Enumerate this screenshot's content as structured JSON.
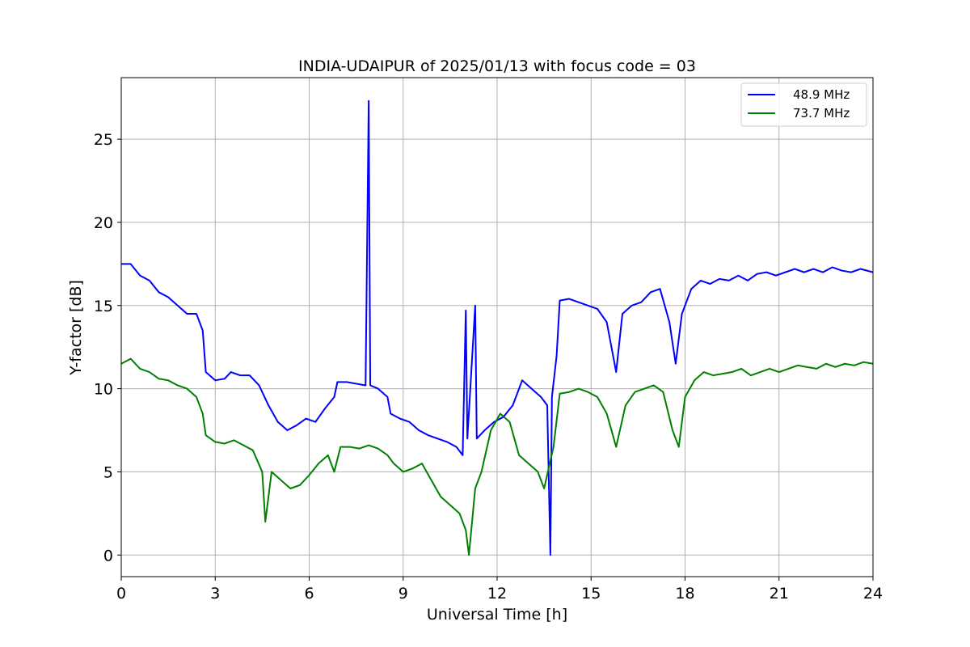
{
  "chart_data": {
    "type": "line",
    "title": "INDIA-UDAIPUR of 2025/01/13 with focus code = 03",
    "xlabel": "Universal Time [h]",
    "ylabel": "Y-factor [dB]",
    "xlim": [
      0,
      24
    ],
    "ylim": [
      -1.3,
      28.7
    ],
    "x_ticks": [
      0,
      3,
      6,
      9,
      12,
      15,
      18,
      21,
      24
    ],
    "y_ticks": [
      0,
      5,
      10,
      15,
      20,
      25
    ],
    "grid": true,
    "legend_position": "top-right",
    "series": [
      {
        "name": "48.9 MHz",
        "color": "#0000ff",
        "points": [
          [
            0.0,
            17.5
          ],
          [
            0.3,
            17.5
          ],
          [
            0.6,
            16.8
          ],
          [
            0.9,
            16.5
          ],
          [
            1.2,
            15.8
          ],
          [
            1.5,
            15.5
          ],
          [
            1.8,
            15.0
          ],
          [
            2.1,
            14.5
          ],
          [
            2.4,
            14.5
          ],
          [
            2.6,
            13.5
          ],
          [
            2.7,
            11.0
          ],
          [
            3.0,
            10.5
          ],
          [
            3.3,
            10.6
          ],
          [
            3.5,
            11.0
          ],
          [
            3.8,
            10.8
          ],
          [
            4.1,
            10.8
          ],
          [
            4.4,
            10.2
          ],
          [
            4.7,
            9.0
          ],
          [
            5.0,
            8.0
          ],
          [
            5.3,
            7.5
          ],
          [
            5.6,
            7.8
          ],
          [
            5.9,
            8.2
          ],
          [
            6.2,
            8.0
          ],
          [
            6.5,
            8.8
          ],
          [
            6.8,
            9.5
          ],
          [
            6.9,
            10.4
          ],
          [
            7.2,
            10.4
          ],
          [
            7.5,
            10.3
          ],
          [
            7.8,
            10.2
          ],
          [
            7.9,
            27.3
          ],
          [
            7.95,
            10.2
          ],
          [
            8.2,
            10.0
          ],
          [
            8.5,
            9.5
          ],
          [
            8.6,
            8.5
          ],
          [
            8.9,
            8.2
          ],
          [
            9.2,
            8.0
          ],
          [
            9.5,
            7.5
          ],
          [
            9.8,
            7.2
          ],
          [
            10.1,
            7.0
          ],
          [
            10.4,
            6.8
          ],
          [
            10.7,
            6.5
          ],
          [
            10.9,
            6.0
          ],
          [
            11.0,
            14.7
          ],
          [
            11.05,
            7.0
          ],
          [
            11.3,
            15.0
          ],
          [
            11.35,
            7.0
          ],
          [
            11.6,
            7.5
          ],
          [
            11.9,
            8.0
          ],
          [
            12.2,
            8.3
          ],
          [
            12.5,
            9.0
          ],
          [
            12.8,
            10.5
          ],
          [
            13.1,
            10.0
          ],
          [
            13.4,
            9.5
          ],
          [
            13.6,
            9.0
          ],
          [
            13.7,
            0.0
          ],
          [
            13.75,
            9.5
          ],
          [
            13.9,
            12.0
          ],
          [
            14.0,
            15.3
          ],
          [
            14.3,
            15.4
          ],
          [
            14.6,
            15.2
          ],
          [
            14.9,
            15.0
          ],
          [
            15.2,
            14.8
          ],
          [
            15.5,
            14.0
          ],
          [
            15.8,
            11.0
          ],
          [
            16.0,
            14.5
          ],
          [
            16.3,
            15.0
          ],
          [
            16.6,
            15.2
          ],
          [
            16.9,
            15.8
          ],
          [
            17.2,
            16.0
          ],
          [
            17.5,
            14.0
          ],
          [
            17.7,
            11.5
          ],
          [
            17.9,
            14.5
          ],
          [
            18.2,
            16.0
          ],
          [
            18.5,
            16.5
          ],
          [
            18.8,
            16.3
          ],
          [
            19.1,
            16.6
          ],
          [
            19.4,
            16.5
          ],
          [
            19.7,
            16.8
          ],
          [
            20.0,
            16.5
          ],
          [
            20.3,
            16.9
          ],
          [
            20.6,
            17.0
          ],
          [
            20.9,
            16.8
          ],
          [
            21.2,
            17.0
          ],
          [
            21.5,
            17.2
          ],
          [
            21.8,
            17.0
          ],
          [
            22.1,
            17.2
          ],
          [
            22.4,
            17.0
          ],
          [
            22.7,
            17.3
          ],
          [
            23.0,
            17.1
          ],
          [
            23.3,
            17.0
          ],
          [
            23.6,
            17.2
          ],
          [
            24.0,
            17.0
          ]
        ]
      },
      {
        "name": "73.7 MHz",
        "color": "#008000",
        "points": [
          [
            0.0,
            11.5
          ],
          [
            0.3,
            11.8
          ],
          [
            0.6,
            11.2
          ],
          [
            0.9,
            11.0
          ],
          [
            1.2,
            10.6
          ],
          [
            1.5,
            10.5
          ],
          [
            1.8,
            10.2
          ],
          [
            2.1,
            10.0
          ],
          [
            2.4,
            9.5
          ],
          [
            2.6,
            8.5
          ],
          [
            2.7,
            7.2
          ],
          [
            3.0,
            6.8
          ],
          [
            3.3,
            6.7
          ],
          [
            3.6,
            6.9
          ],
          [
            3.9,
            6.6
          ],
          [
            4.2,
            6.3
          ],
          [
            4.5,
            5.0
          ],
          [
            4.6,
            2.0
          ],
          [
            4.8,
            5.0
          ],
          [
            5.1,
            4.5
          ],
          [
            5.4,
            4.0
          ],
          [
            5.7,
            4.2
          ],
          [
            6.0,
            4.8
          ],
          [
            6.3,
            5.5
          ],
          [
            6.6,
            6.0
          ],
          [
            6.8,
            5.0
          ],
          [
            7.0,
            6.5
          ],
          [
            7.3,
            6.5
          ],
          [
            7.6,
            6.4
          ],
          [
            7.9,
            6.6
          ],
          [
            8.2,
            6.4
          ],
          [
            8.5,
            6.0
          ],
          [
            8.7,
            5.5
          ],
          [
            9.0,
            5.0
          ],
          [
            9.3,
            5.2
          ],
          [
            9.6,
            5.5
          ],
          [
            9.9,
            4.5
          ],
          [
            10.2,
            3.5
          ],
          [
            10.5,
            3.0
          ],
          [
            10.8,
            2.5
          ],
          [
            11.0,
            1.5
          ],
          [
            11.1,
            0.0
          ],
          [
            11.3,
            4.0
          ],
          [
            11.5,
            5.0
          ],
          [
            11.8,
            7.5
          ],
          [
            12.1,
            8.5
          ],
          [
            12.4,
            8.0
          ],
          [
            12.7,
            6.0
          ],
          [
            13.0,
            5.5
          ],
          [
            13.3,
            5.0
          ],
          [
            13.5,
            4.0
          ],
          [
            13.8,
            6.5
          ],
          [
            14.0,
            9.7
          ],
          [
            14.3,
            9.8
          ],
          [
            14.6,
            10.0
          ],
          [
            14.9,
            9.8
          ],
          [
            15.2,
            9.5
          ],
          [
            15.5,
            8.5
          ],
          [
            15.8,
            6.5
          ],
          [
            16.1,
            9.0
          ],
          [
            16.4,
            9.8
          ],
          [
            16.7,
            10.0
          ],
          [
            17.0,
            10.2
          ],
          [
            17.3,
            9.8
          ],
          [
            17.6,
            7.5
          ],
          [
            17.8,
            6.5
          ],
          [
            18.0,
            9.5
          ],
          [
            18.3,
            10.5
          ],
          [
            18.6,
            11.0
          ],
          [
            18.9,
            10.8
          ],
          [
            19.2,
            10.9
          ],
          [
            19.5,
            11.0
          ],
          [
            19.8,
            11.2
          ],
          [
            20.1,
            10.8
          ],
          [
            20.4,
            11.0
          ],
          [
            20.7,
            11.2
          ],
          [
            21.0,
            11.0
          ],
          [
            21.3,
            11.2
          ],
          [
            21.6,
            11.4
          ],
          [
            21.9,
            11.3
          ],
          [
            22.2,
            11.2
          ],
          [
            22.5,
            11.5
          ],
          [
            22.8,
            11.3
          ],
          [
            23.1,
            11.5
          ],
          [
            23.4,
            11.4
          ],
          [
            23.7,
            11.6
          ],
          [
            24.0,
            11.5
          ]
        ]
      }
    ]
  }
}
